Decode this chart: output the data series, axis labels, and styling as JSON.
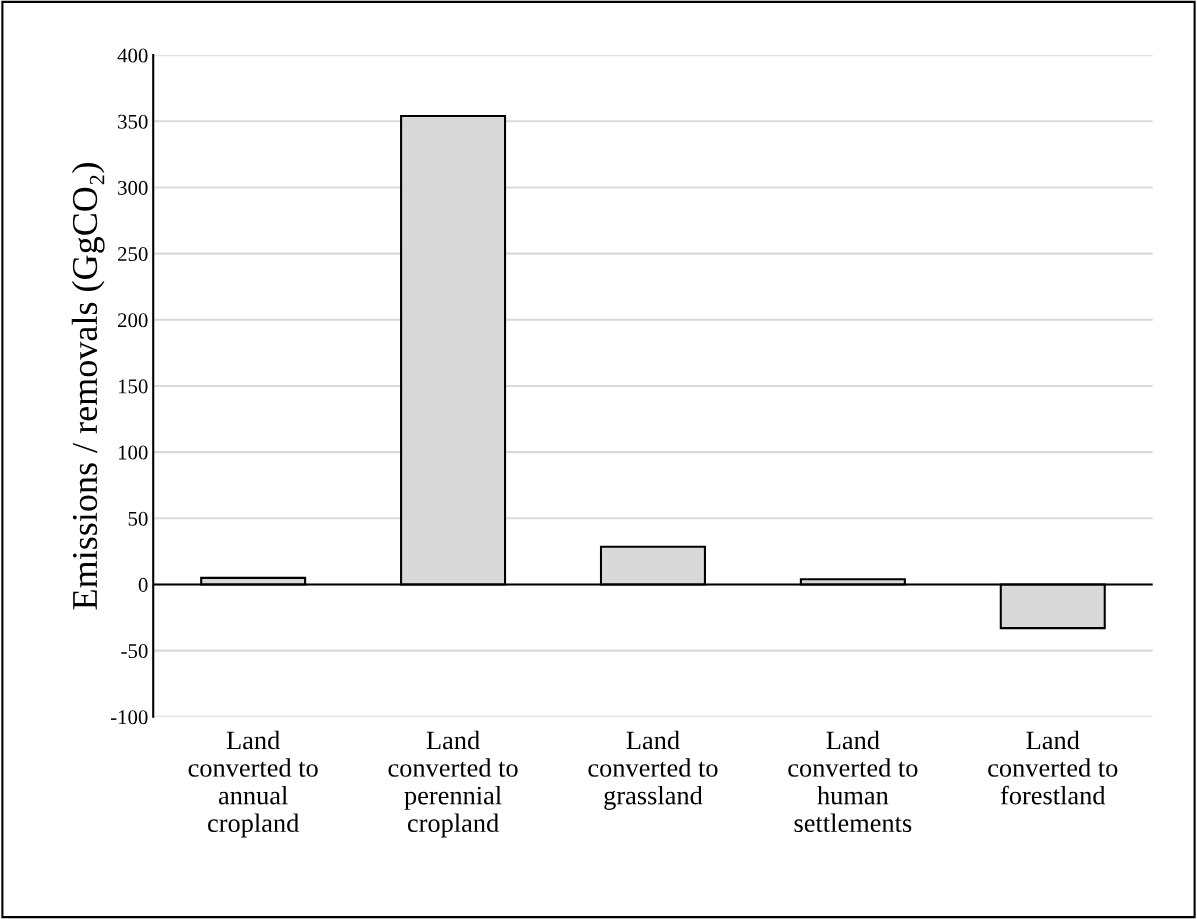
{
  "chart_data": {
    "type": "bar",
    "ylabel": "Emissions / removals (GgCO₂)",
    "categories": [
      "Land\nconverted to\nannual\ncropland",
      "Land\nconverted to\nperennial\ncropland",
      "Land\nconverted to\ngrassland",
      "Land\nconverted to\nhuman\nsettlements",
      "Land\nconverted to\nforestland"
    ],
    "values": [
      5,
      354,
      28.5,
      4,
      -33
    ],
    "color": "#d9d9d9",
    "ylim": [
      -100,
      400
    ],
    "yticks": [
      -100,
      -50,
      0,
      50,
      100,
      150,
      200,
      250,
      300,
      350,
      400
    ],
    "grid": "y",
    "legend": false
  }
}
